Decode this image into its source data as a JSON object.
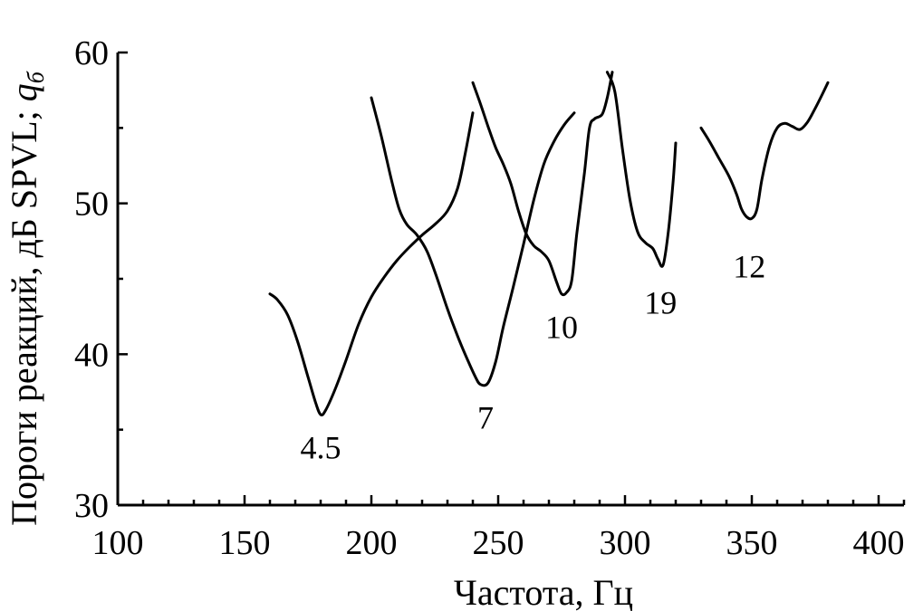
{
  "chart_data": {
    "type": "line",
    "xlabel": "Частота,  Гц",
    "ylabel_main": "Пороги реакций, дБ SPVL; ",
    "ylabel_sym": "q",
    "ylabel_sub": "б",
    "xlim": [
      100,
      410
    ],
    "ylim": [
      30,
      60
    ],
    "x_ticks": [
      100,
      150,
      200,
      250,
      300,
      350,
      400
    ],
    "y_ticks": [
      30,
      40,
      50,
      60
    ],
    "x_minor_step": 10,
    "y_minor_step": 5,
    "grid": false,
    "series": [
      {
        "name": "4.5",
        "label": {
          "text": "4.5",
          "x": 180,
          "y": 33.8
        },
        "points": [
          [
            160,
            44
          ],
          [
            163,
            43.6
          ],
          [
            167,
            42.6
          ],
          [
            171,
            40.8
          ],
          [
            175,
            38.5
          ],
          [
            178,
            36.8
          ],
          [
            180,
            36
          ],
          [
            182,
            36.3
          ],
          [
            186,
            37.8
          ],
          [
            190,
            39.6
          ],
          [
            195,
            42
          ],
          [
            200,
            43.8
          ],
          [
            205,
            45.1
          ],
          [
            210,
            46.2
          ],
          [
            215,
            47.1
          ],
          [
            220,
            47.9
          ],
          [
            225,
            48.6
          ],
          [
            230,
            49.5
          ],
          [
            234,
            51
          ],
          [
            237,
            53.3
          ],
          [
            240,
            56
          ]
        ]
      },
      {
        "name": "7",
        "label": {
          "text": "7",
          "x": 245,
          "y": 35.8
        },
        "points": [
          [
            200,
            57
          ],
          [
            204,
            54.4
          ],
          [
            208,
            51.5
          ],
          [
            211,
            49.6
          ],
          [
            214,
            48.6
          ],
          [
            218,
            47.9
          ],
          [
            222,
            46.8
          ],
          [
            226,
            45
          ],
          [
            230,
            43
          ],
          [
            234,
            41.2
          ],
          [
            238,
            39.6
          ],
          [
            241,
            38.5
          ],
          [
            243,
            38
          ],
          [
            246,
            38.1
          ],
          [
            249,
            39.5
          ],
          [
            252,
            41.8
          ],
          [
            256,
            44.5
          ],
          [
            260,
            47.3
          ],
          [
            264,
            50.2
          ],
          [
            268,
            52.6
          ],
          [
            272,
            54.1
          ],
          [
            276,
            55.2
          ],
          [
            280,
            56
          ]
        ]
      },
      {
        "name": "10",
        "label": {
          "text": "10",
          "x": 275,
          "y": 41.8
        },
        "points": [
          [
            240,
            58
          ],
          [
            243,
            56.6
          ],
          [
            246,
            55.1
          ],
          [
            249,
            53.7
          ],
          [
            252,
            52.6
          ],
          [
            255,
            51.3
          ],
          [
            258,
            49.5
          ],
          [
            261,
            48
          ],
          [
            264,
            47.2
          ],
          [
            267,
            46.8
          ],
          [
            270,
            46.2
          ],
          [
            273,
            44.8
          ],
          [
            275,
            44
          ],
          [
            277,
            44.1
          ],
          [
            279,
            44.9
          ],
          [
            281,
            48
          ],
          [
            284,
            52
          ],
          [
            286,
            55
          ],
          [
            288,
            55.6
          ],
          [
            291,
            55.9
          ],
          [
            293,
            57
          ],
          [
            295,
            58.7
          ]
        ]
      },
      {
        "name": "19",
        "label": {
          "text": "19",
          "x": 314,
          "y": 43.4
        },
        "points": [
          [
            293,
            58.7
          ],
          [
            296,
            57.4
          ],
          [
            299,
            53.6
          ],
          [
            302,
            50.2
          ],
          [
            305,
            48.1
          ],
          [
            308,
            47.4
          ],
          [
            311,
            47
          ],
          [
            313,
            46.3
          ],
          [
            315,
            45.9
          ],
          [
            317,
            48
          ],
          [
            319,
            51.5
          ],
          [
            320,
            54
          ]
        ]
      },
      {
        "name": "12",
        "label": {
          "text": "12",
          "x": 349,
          "y": 45.8
        },
        "points": [
          [
            330,
            55
          ],
          [
            333,
            54.2
          ],
          [
            337,
            53
          ],
          [
            341,
            51.8
          ],
          [
            344,
            50.6
          ],
          [
            346,
            49.6
          ],
          [
            348,
            49.1
          ],
          [
            350,
            49
          ],
          [
            352,
            49.6
          ],
          [
            354,
            51.6
          ],
          [
            357,
            53.8
          ],
          [
            360,
            55
          ],
          [
            363,
            55.3
          ],
          [
            366,
            55.1
          ],
          [
            369,
            54.9
          ],
          [
            372,
            55.4
          ],
          [
            375,
            56.3
          ],
          [
            378,
            57.3
          ],
          [
            380,
            58
          ]
        ]
      }
    ]
  }
}
